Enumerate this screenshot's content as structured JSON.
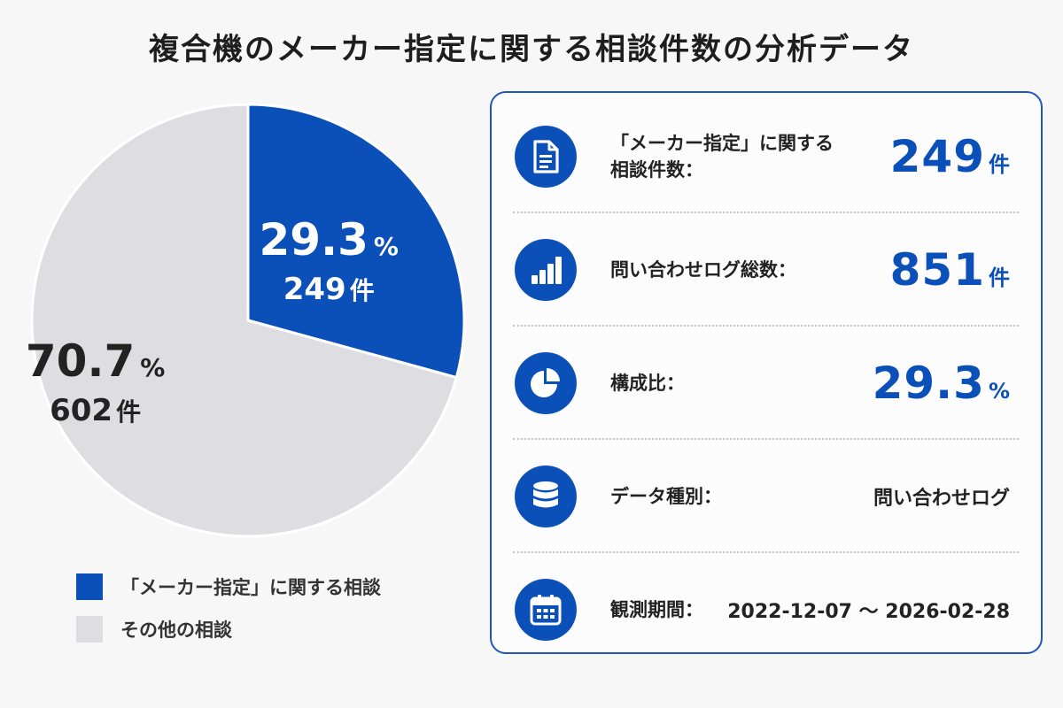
{
  "title": "複合機のメーカー指定に関する相談件数の分析データ",
  "chart_data": {
    "type": "pie",
    "slices": [
      {
        "label": "「メーカー指定」に関する相談",
        "value": 249,
        "percent": 29.3,
        "percent_text": "29.3",
        "count_text": "249",
        "color": "#0b4fb8",
        "text_color": "#ffffff"
      },
      {
        "label": "その他の相談",
        "value": 602,
        "percent": 70.7,
        "percent_text": "70.7",
        "count_text": "602",
        "color": "#dedee2",
        "text_color": "#222222"
      }
    ],
    "percent_unit": "%",
    "count_unit": "件"
  },
  "legend": [
    {
      "label": "「メーカー指定」に関する相談",
      "color": "#0b4fb8"
    },
    {
      "label": "その他の相談",
      "color": "#dedee2"
    }
  ],
  "stats": [
    {
      "icon": "document-icon",
      "label": "「メーカー指定」に関する\n相談件数：",
      "value": "249",
      "unit": "件"
    },
    {
      "icon": "bar-chart-icon",
      "label": "問い合わせログ総数：",
      "value": "851",
      "unit": "件"
    },
    {
      "icon": "pie-chart-icon",
      "label": "構成比：",
      "value": "29.3",
      "unit": "%"
    },
    {
      "icon": "database-icon",
      "label": "データ種別：",
      "value": "問い合わせログ",
      "unit": ""
    },
    {
      "icon": "calendar-icon",
      "label": "観測期間：",
      "value": "2022-12-07 ～ 2026-02-28",
      "unit": ""
    }
  ]
}
